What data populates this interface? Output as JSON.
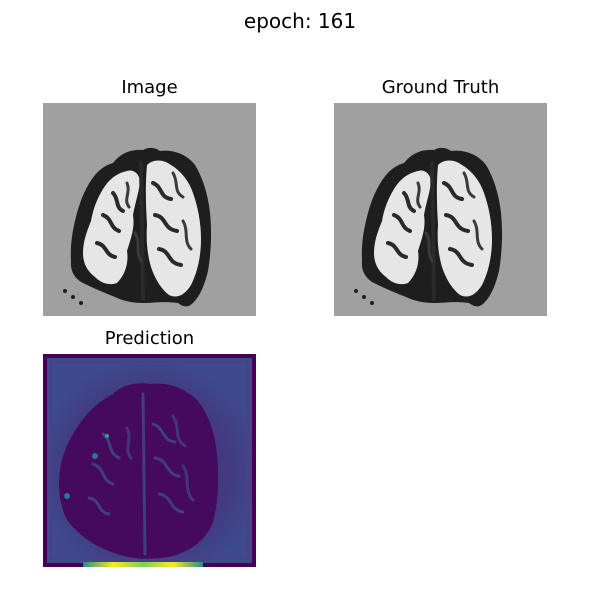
{
  "figure": {
    "suptitle": "epoch: 161"
  },
  "panels": {
    "image": {
      "title": "Image"
    },
    "ground_truth": {
      "title": "Ground Truth"
    },
    "prediction": {
      "title": "Prediction"
    }
  },
  "colors": {
    "background_gray": "#a0a0a0",
    "brain_white": "#e6e6e6",
    "brain_dark": "#1e1e1e",
    "viridis_dark": "#440154",
    "viridis_mid": "#3b528b",
    "viridis_teal": "#21918c",
    "viridis_yellow": "#fde725"
  }
}
